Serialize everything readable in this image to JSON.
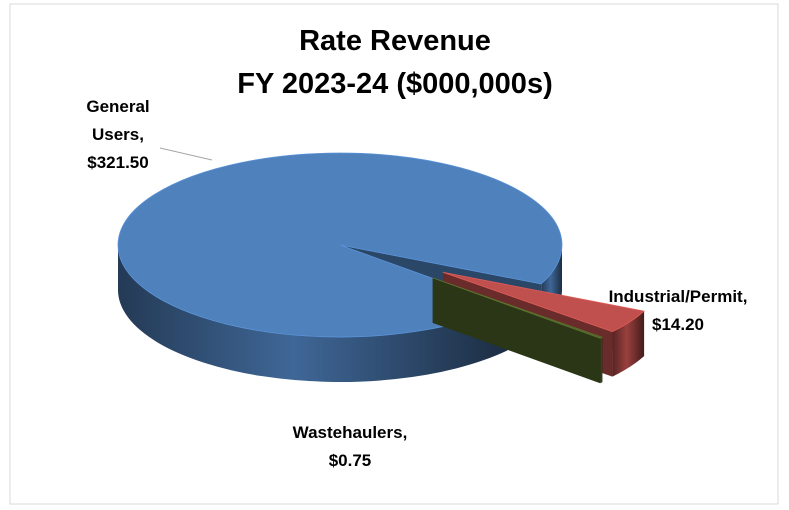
{
  "chart_data": {
    "type": "pie3d",
    "title": "Rate Revenue",
    "subtitle": "FY 2023-24 ($000,000s)",
    "categories": [
      "General Users",
      "Industrial/Permit",
      "Wastehaulers"
    ],
    "values": [
      321.5,
      14.2,
      0.75
    ],
    "value_labels": [
      "$321.50",
      "$14.20",
      "$0.75"
    ],
    "label_separator": ",",
    "colors": [
      "#4f81bd",
      "#c0504d",
      "#4f6228"
    ],
    "exploded": [
      false,
      true,
      true
    ]
  }
}
